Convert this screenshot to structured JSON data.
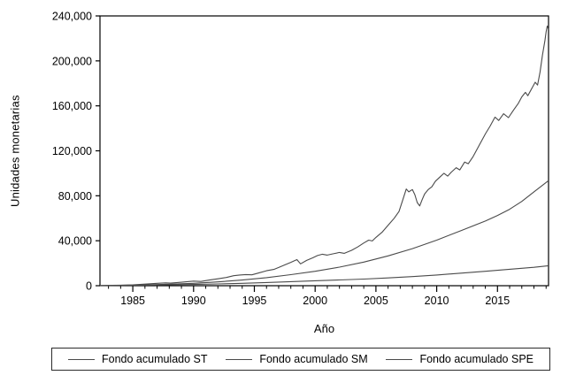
{
  "chart_data": {
    "type": "line",
    "title": "",
    "xlabel": "Año",
    "ylabel": "Unidades monetarias",
    "xlim": [
      1982.3,
      2019.2
    ],
    "ylim": [
      0,
      240000
    ],
    "grid": false,
    "legend_position": "bottom-box",
    "axis_color": "#000000",
    "line_color": "#4a4a4a",
    "background": "#ffffff",
    "y_ticks": [
      {
        "v": 0,
        "label": "0"
      },
      {
        "v": 40000,
        "label": "40,000"
      },
      {
        "v": 80000,
        "label": "80,000"
      },
      {
        "v": 120000,
        "label": "120,000"
      },
      {
        "v": 160000,
        "label": "160,000"
      },
      {
        "v": 200000,
        "label": "200,000"
      },
      {
        "v": 240000,
        "label": "240,000"
      }
    ],
    "x_ticks": [
      {
        "v": 1985,
        "label": "1985"
      },
      {
        "v": 1990,
        "label": "1990"
      },
      {
        "v": 1995,
        "label": "1995"
      },
      {
        "v": 2000,
        "label": "2000"
      },
      {
        "v": 2005,
        "label": "2005"
      },
      {
        "v": 2010,
        "label": "2010"
      },
      {
        "v": 2015,
        "label": "2015"
      }
    ],
    "x_minor_tick_step": 1,
    "series": [
      {
        "name": "Fondo acumulado ST",
        "style": "jagged",
        "points": [
          [
            1982.3,
            100
          ],
          [
            1983,
            200
          ],
          [
            1984,
            450
          ],
          [
            1985,
            800
          ],
          [
            1986,
            1400
          ],
          [
            1987,
            2100
          ],
          [
            1987.7,
            2500
          ],
          [
            1988.1,
            2250
          ],
          [
            1989,
            3100
          ],
          [
            1990,
            4100
          ],
          [
            1990.6,
            3800
          ],
          [
            1991.3,
            5000
          ],
          [
            1992,
            6100
          ],
          [
            1992.7,
            7300
          ],
          [
            1993.3,
            8900
          ],
          [
            1993.8,
            9500
          ],
          [
            1994.3,
            9900
          ],
          [
            1994.8,
            9700
          ],
          [
            1995.3,
            11200
          ],
          [
            1996,
            13300
          ],
          [
            1996.6,
            14500
          ],
          [
            1997,
            16200
          ],
          [
            1997.5,
            18500
          ],
          [
            1998,
            20800
          ],
          [
            1998.5,
            23200
          ],
          [
            1998.8,
            19400
          ],
          [
            1999.3,
            22500
          ],
          [
            1999.8,
            24800
          ],
          [
            2000.2,
            26800
          ],
          [
            2000.6,
            28000
          ],
          [
            2001,
            27200
          ],
          [
            2001.5,
            28400
          ],
          [
            2002,
            29600
          ],
          [
            2002.4,
            28800
          ],
          [
            2003,
            31500
          ],
          [
            2003.5,
            34500
          ],
          [
            2004,
            38000
          ],
          [
            2004.4,
            40500
          ],
          [
            2004.7,
            39800
          ],
          [
            2005,
            43000
          ],
          [
            2005.5,
            47500
          ],
          [
            2006.1,
            55000
          ],
          [
            2006.5,
            60000
          ],
          [
            2006.9,
            66000
          ],
          [
            2007.2,
            76000
          ],
          [
            2007.5,
            86000
          ],
          [
            2007.7,
            83500
          ],
          [
            2008,
            85500
          ],
          [
            2008.2,
            81000
          ],
          [
            2008.4,
            74000
          ],
          [
            2008.6,
            71000
          ],
          [
            2008.8,
            76500
          ],
          [
            2009,
            81500
          ],
          [
            2009.3,
            85500
          ],
          [
            2009.6,
            88000
          ],
          [
            2009.9,
            93000
          ],
          [
            2010.3,
            97000
          ],
          [
            2010.6,
            100000
          ],
          [
            2010.9,
            97500
          ],
          [
            2011.2,
            101000
          ],
          [
            2011.6,
            105000
          ],
          [
            2011.9,
            103000
          ],
          [
            2012.3,
            110000
          ],
          [
            2012.6,
            108500
          ],
          [
            2013,
            115000
          ],
          [
            2013.5,
            125000
          ],
          [
            2014,
            135000
          ],
          [
            2014.4,
            142000
          ],
          [
            2014.8,
            150000
          ],
          [
            2015.1,
            147000
          ],
          [
            2015.5,
            153000
          ],
          [
            2015.9,
            149500
          ],
          [
            2016.3,
            156000
          ],
          [
            2016.7,
            162000
          ],
          [
            2017,
            168000
          ],
          [
            2017.3,
            172000
          ],
          [
            2017.5,
            169000
          ],
          [
            2017.9,
            177000
          ],
          [
            2018.1,
            181000
          ],
          [
            2018.3,
            178500
          ],
          [
            2018.5,
            190000
          ],
          [
            2018.7,
            205000
          ],
          [
            2018.9,
            218000
          ],
          [
            2019,
            226000
          ],
          [
            2019.1,
            231000
          ],
          [
            2019.2,
            228000
          ]
        ]
      },
      {
        "name": "Fondo acumulado SM",
        "style": "smooth",
        "points": [
          [
            1982.3,
            60
          ],
          [
            1984,
            300
          ],
          [
            1986,
            700
          ],
          [
            1988,
            1300
          ],
          [
            1990,
            2100
          ],
          [
            1992,
            3400
          ],
          [
            1994,
            5000
          ],
          [
            1996,
            7200
          ],
          [
            1998,
            9800
          ],
          [
            2000,
            12800
          ],
          [
            2002,
            16500
          ],
          [
            2004,
            21000
          ],
          [
            2006,
            26500
          ],
          [
            2008,
            33000
          ],
          [
            2010,
            40500
          ],
          [
            2012,
            49000
          ],
          [
            2014,
            57500
          ],
          [
            2015,
            62500
          ],
          [
            2016,
            68000
          ],
          [
            2017,
            75000
          ],
          [
            2018,
            83500
          ],
          [
            2019.2,
            93500
          ]
        ]
      },
      {
        "name": "Fondo acumulado SPE",
        "style": "smooth",
        "points": [
          [
            1982.3,
            40
          ],
          [
            1984,
            200
          ],
          [
            1986,
            450
          ],
          [
            1988,
            750
          ],
          [
            1990,
            1100
          ],
          [
            1992,
            1600
          ],
          [
            1994,
            2100
          ],
          [
            1996,
            2800
          ],
          [
            1998,
            3600
          ],
          [
            2000,
            4400
          ],
          [
            2002,
            5100
          ],
          [
            2004,
            5900
          ],
          [
            2006,
            6900
          ],
          [
            2008,
            8100
          ],
          [
            2010,
            9500
          ],
          [
            2012,
            11200
          ],
          [
            2014,
            12800
          ],
          [
            2016,
            14600
          ],
          [
            2018,
            16400
          ],
          [
            2019.2,
            17800
          ]
        ]
      }
    ]
  }
}
